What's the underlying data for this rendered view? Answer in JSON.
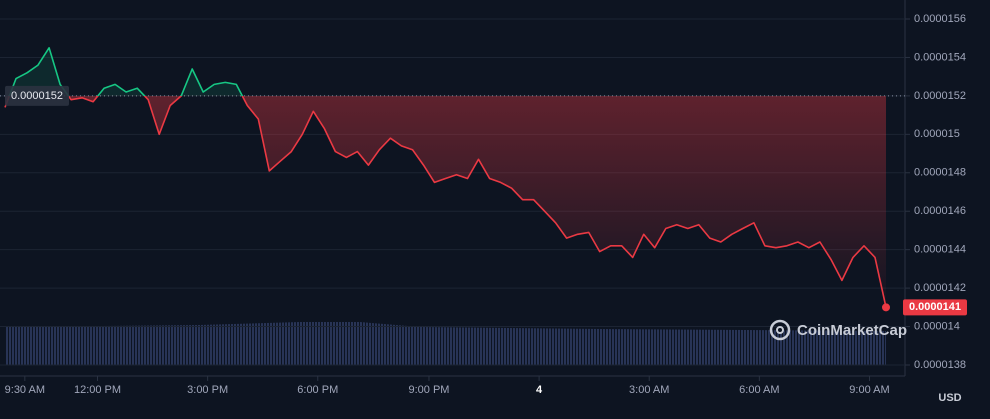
{
  "chart_data": {
    "type": "line",
    "series": [
      {
        "color": "#ea3943",
        "values": [
          1.514e-05,
          1.529e-05,
          1.532e-05,
          1.536e-05,
          1.545e-05,
          1.526e-05,
          1.518e-05,
          1.519e-05,
          1.517e-05,
          1.524e-05,
          1.526e-05,
          1.522e-05,
          1.524e-05,
          1.518e-05,
          1.5e-05,
          1.515e-05,
          1.52e-05,
          1.534e-05,
          1.522e-05,
          1.526e-05,
          1.527e-05,
          1.526e-05,
          1.515e-05,
          1.508e-05,
          1.481e-05,
          1.486e-05,
          1.491e-05,
          1.5e-05,
          1.512e-05,
          1.503e-05,
          1.491e-05,
          1.488e-05,
          1.491e-05,
          1.484e-05,
          1.492e-05,
          1.498e-05,
          1.494e-05,
          1.492e-05,
          1.484e-05,
          1.475e-05,
          1.477e-05,
          1.479e-05,
          1.477e-05,
          1.487e-05,
          1.477e-05,
          1.475e-05,
          1.472e-05,
          1.466e-05,
          1.466e-05,
          1.46e-05,
          1.454e-05,
          1.446e-05,
          1.448e-05,
          1.449e-05,
          1.439e-05,
          1.442e-05,
          1.442e-05,
          1.436e-05,
          1.448e-05,
          1.441e-05,
          1.451e-05,
          1.453e-05,
          1.451e-05,
          1.453e-05,
          1.446e-05,
          1.444e-05,
          1.448e-05,
          1.451e-05,
          1.454e-05,
          1.442e-05,
          1.441e-05,
          1.442e-05,
          1.444e-05,
          1.441e-05,
          1.444e-05,
          1.435e-05,
          1.424e-05,
          1.436e-05,
          1.442e-05,
          1.436e-05,
          1.41e-05
        ]
      }
    ],
    "above_color": "#16c784",
    "baseline": 1.52e-05,
    "xlim": [
      0,
      80
    ],
    "xticks": [
      {
        "value": 1.8,
        "label": "9:30 AM"
      },
      {
        "value": 8.4,
        "label": "12:00 PM"
      },
      {
        "value": 18.4,
        "label": "3:00 PM"
      },
      {
        "value": 28.4,
        "label": "6:00 PM"
      },
      {
        "value": 38.5,
        "label": "9:00 PM"
      },
      {
        "value": 48.5,
        "label": "4"
      },
      {
        "value": 58.5,
        "label": "3:00 AM"
      },
      {
        "value": 68.5,
        "label": "6:00 AM"
      },
      {
        "value": 78.5,
        "label": "9:00 AM"
      }
    ],
    "ylim": [
      1.38e-05,
      1.56e-05
    ],
    "yticks": [
      1.38e-05,
      1.4e-05,
      1.42e-05,
      1.44e-05,
      1.46e-05,
      1.48e-05,
      1.5e-05,
      1.52e-05,
      1.54e-05,
      1.56e-05
    ],
    "grid": true,
    "watermark": "CoinMarketCap",
    "currency": "USD"
  }
}
